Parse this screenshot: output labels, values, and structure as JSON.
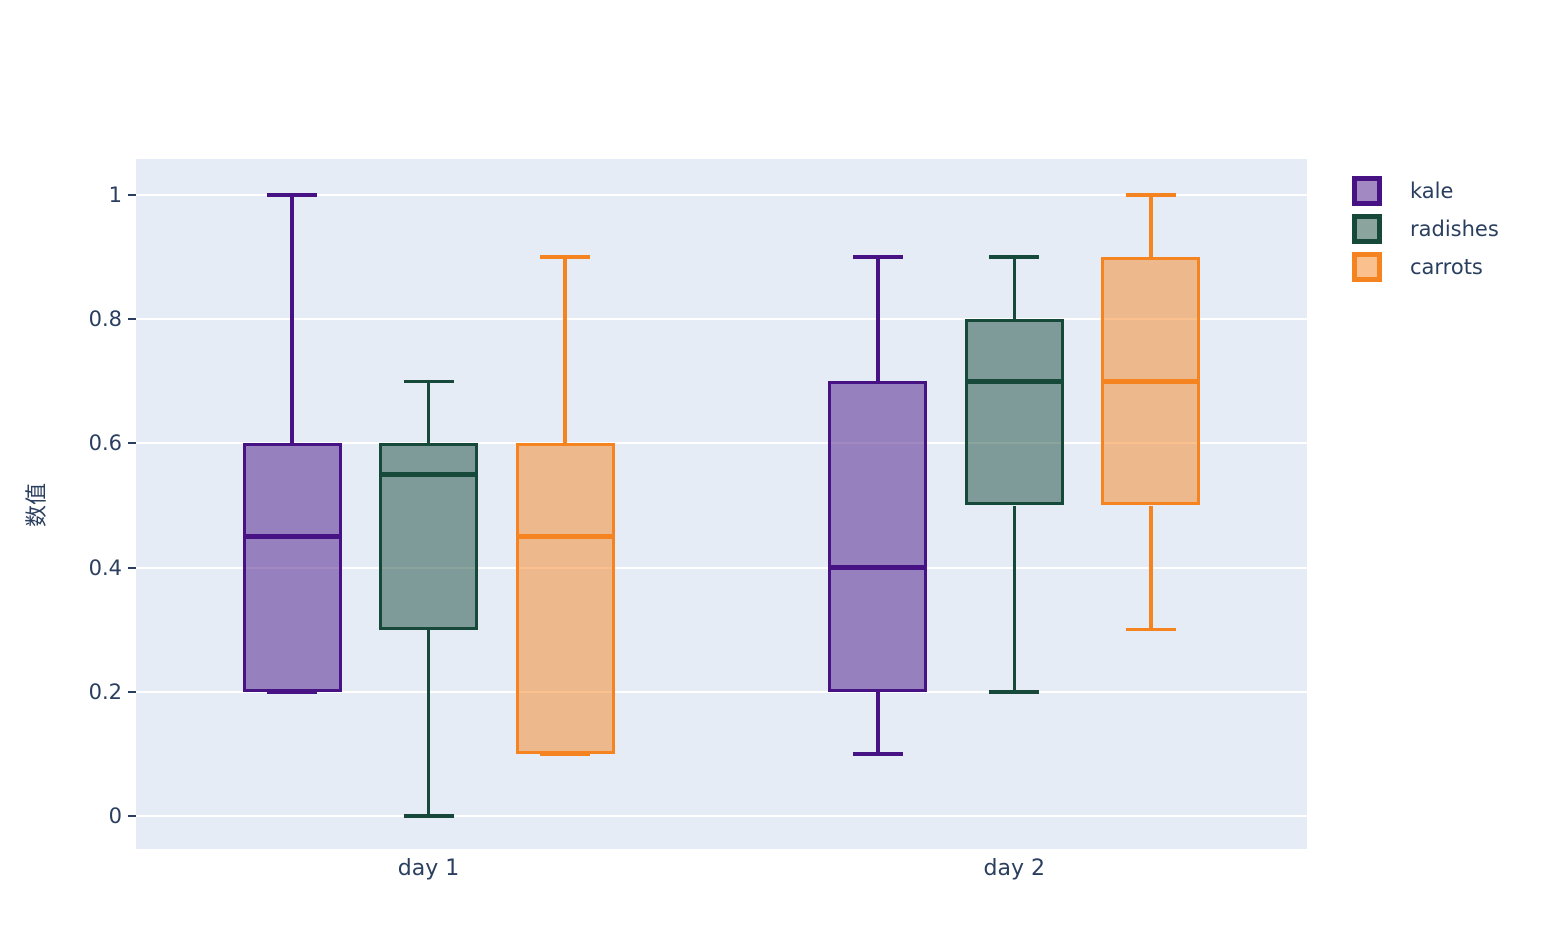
{
  "chart_data": {
    "type": "box",
    "title": "",
    "orientation": "vertical",
    "boxmode": "group",
    "categories": [
      "day 1",
      "day 2"
    ],
    "xlabel": "",
    "ylabel": "数值",
    "yaxis": {
      "ticks": [
        0,
        0.2,
        0.4,
        0.6,
        0.8,
        1
      ],
      "tick_labels": [
        "0",
        "0.2",
        "0.4",
        "0.6",
        "0.8",
        "1"
      ],
      "range": [
        -0.054,
        1.057
      ],
      "grid": true
    },
    "legend": {
      "position": "top-right",
      "items": [
        "kale",
        "radishes",
        "carrots"
      ]
    },
    "series": [
      {
        "name": "kale",
        "line_color": "#471384",
        "fill_color": "rgba(71,19,132,0.5)",
        "boxes": [
          {
            "category": "day 1",
            "min": 0.2,
            "q1": 0.2,
            "median": 0.45,
            "q3": 0.6,
            "max": 1.0
          },
          {
            "category": "day 2",
            "min": 0.1,
            "q1": 0.2,
            "median": 0.4,
            "q3": 0.7,
            "max": 0.9
          }
        ]
      },
      {
        "name": "radishes",
        "line_color": "#17493b",
        "fill_color": "rgba(23,73,59,0.5)",
        "boxes": [
          {
            "category": "day 1",
            "min": 0.0,
            "q1": 0.3,
            "median": 0.55,
            "q3": 0.6,
            "max": 0.7
          },
          {
            "category": "day 2",
            "min": 0.2,
            "q1": 0.5,
            "median": 0.7,
            "q3": 0.8,
            "max": 0.9
          }
        ]
      },
      {
        "name": "carrots",
        "line_color": "#f5831f",
        "fill_color": "rgba(245,131,31,0.5)",
        "boxes": [
          {
            "category": "day 1",
            "min": 0.1,
            "q1": 0.1,
            "median": 0.45,
            "q3": 0.6,
            "max": 0.9
          },
          {
            "category": "day 2",
            "min": 0.3,
            "q1": 0.5,
            "median": 0.7,
            "q3": 0.9,
            "max": 1.0
          }
        ]
      }
    ],
    "colors": {
      "plot_bg": "#e5ecf6",
      "grid": "#ffffff",
      "text": "#2a3f5f",
      "tick": "#2a3f5f",
      "page_bg": "#ffffff"
    }
  }
}
